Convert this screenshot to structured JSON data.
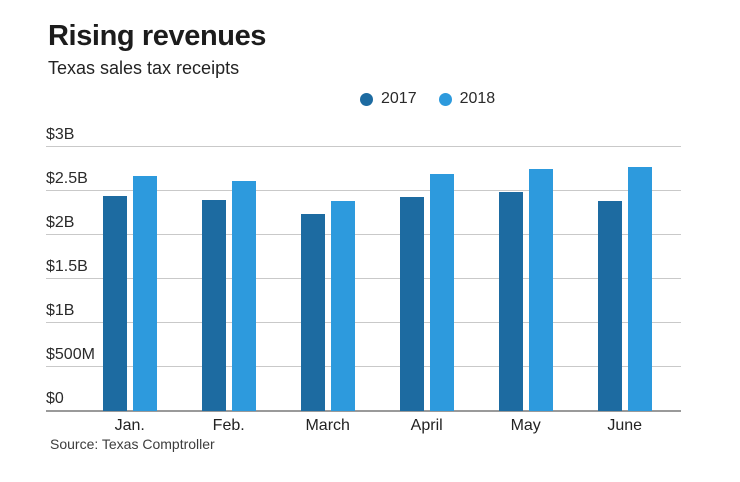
{
  "header": {
    "title": "Rising revenues",
    "subtitle": "Texas sales tax receipts"
  },
  "legend": [
    {
      "label": "2017",
      "color": "#1d6ba1"
    },
    {
      "label": "2018",
      "color": "#2d9add"
    }
  ],
  "source": "Source: Texas Comptroller",
  "colors": {
    "series_2017": "#1d6ba1",
    "series_2018": "#2d9add",
    "gridline": "#c9c9c9",
    "axis_line": "#9a9a9a"
  },
  "chart_data": {
    "type": "bar",
    "title": "Rising revenues",
    "subtitle": "Texas sales tax receipts",
    "categories": [
      "Jan.",
      "Feb.",
      "March",
      "April",
      "May",
      "June"
    ],
    "series": [
      {
        "name": "2017",
        "color": "#1d6ba1",
        "values": [
          2.44,
          2.4,
          2.24,
          2.43,
          2.49,
          2.39
        ]
      },
      {
        "name": "2018",
        "color": "#2d9add",
        "values": [
          2.67,
          2.61,
          2.39,
          2.69,
          2.75,
          2.77
        ]
      }
    ],
    "unit": "billions of USD",
    "xlabel": "",
    "ylabel": "",
    "ylim": [
      0,
      3
    ],
    "y_ticks": [
      {
        "label": "$3B",
        "value": 3
      },
      {
        "label": "$2.5B",
        "value": 2.5
      },
      {
        "label": "$2B",
        "value": 2
      },
      {
        "label": "$1.5B",
        "value": 1.5
      },
      {
        "label": "$1B",
        "value": 1
      },
      {
        "label": "$500M",
        "value": 0.5
      },
      {
        "label": "$0",
        "value": 0
      }
    ],
    "grid": true,
    "legend_position": "top-center",
    "source": "Source: Texas Comptroller"
  }
}
